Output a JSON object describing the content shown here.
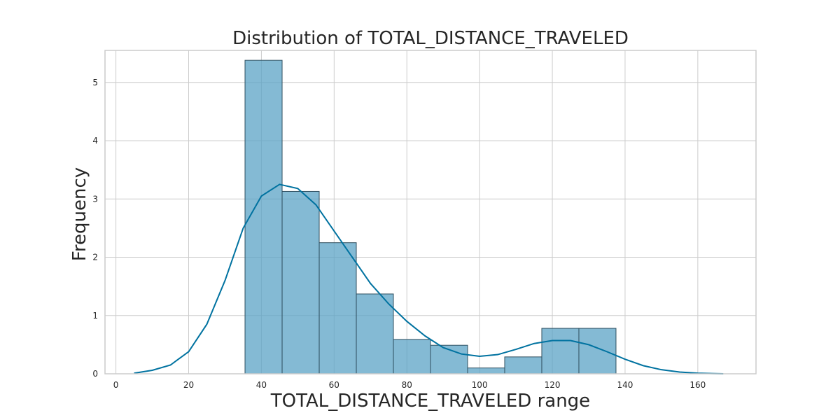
{
  "chart_data": {
    "type": "bar",
    "title": "Distribution of TOTAL_DISTANCE_TRAVELED",
    "xlabel": "TOTAL_DISTANCE_TRAVELED range",
    "ylabel": "Frequency",
    "xlim": [
      -3,
      176
    ],
    "ylim": [
      0,
      5.55
    ],
    "xticks": [
      0,
      20,
      40,
      60,
      80,
      100,
      120,
      140,
      160
    ],
    "yticks": [
      0,
      1,
      2,
      3,
      4,
      5
    ],
    "grid": true,
    "bins": [
      {
        "x0": 35.5,
        "x1": 45.7,
        "value": 5.38
      },
      {
        "x0": 45.7,
        "x1": 55.9,
        "value": 3.13
      },
      {
        "x0": 55.9,
        "x1": 66.1,
        "value": 2.25
      },
      {
        "x0": 66.1,
        "x1": 76.3,
        "value": 1.37
      },
      {
        "x0": 76.3,
        "x1": 86.5,
        "value": 0.59
      },
      {
        "x0": 86.5,
        "x1": 96.7,
        "value": 0.49
      },
      {
        "x0": 96.7,
        "x1": 106.9,
        "value": 0.1
      },
      {
        "x0": 106.9,
        "x1": 117.1,
        "value": 0.29
      },
      {
        "x0": 117.1,
        "x1": 127.3,
        "value": 0.78
      },
      {
        "x0": 127.3,
        "x1": 137.5,
        "value": 0.78
      }
    ],
    "kde": {
      "x": [
        5,
        10,
        15,
        20,
        25,
        30,
        35,
        40,
        45,
        50,
        55,
        60,
        65,
        70,
        75,
        80,
        85,
        90,
        95,
        100,
        105,
        110,
        115,
        120,
        125,
        130,
        135,
        140,
        145,
        150,
        155,
        160,
        167
      ],
      "y": [
        0.01,
        0.06,
        0.15,
        0.38,
        0.85,
        1.6,
        2.5,
        3.05,
        3.25,
        3.18,
        2.9,
        2.45,
        2.0,
        1.55,
        1.2,
        0.9,
        0.65,
        0.45,
        0.34,
        0.3,
        0.33,
        0.42,
        0.52,
        0.57,
        0.57,
        0.5,
        0.38,
        0.25,
        0.14,
        0.07,
        0.03,
        0.01,
        0.0
      ]
    },
    "colors": {
      "bar_fill": "#5ba3c5",
      "bar_edge": "#2f4f5f",
      "kde_line": "#0072a0",
      "grid": "#cccccc",
      "frame": "#cccccc"
    }
  }
}
